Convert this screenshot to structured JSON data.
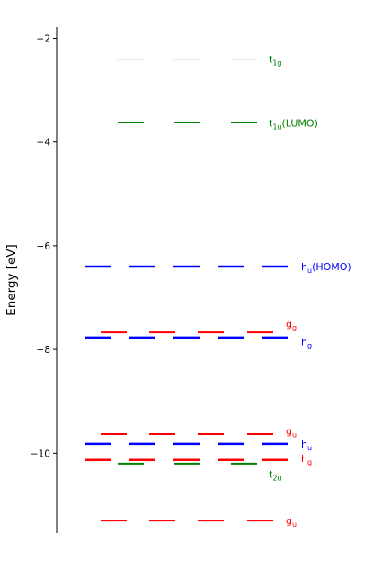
{
  "chart_data": {
    "type": "energy-level-diagram",
    "title": "",
    "xlabel": "",
    "ylabel": "Energy [eV]",
    "ylim": [
      -11.5,
      -1.8
    ],
    "yticks": [
      -2,
      -4,
      -6,
      -8,
      -10
    ],
    "ytick_labels": [
      "−2",
      "−4",
      "−6",
      "−8",
      "−10"
    ],
    "grid": false,
    "levels": [
      {
        "id": "t1g",
        "energy": -2.4,
        "degeneracy": 3,
        "color": "#008000",
        "label_main": "t",
        "label_sub": "1g",
        "label_suffix": "",
        "label_energy": -2.4
      },
      {
        "id": "t1u",
        "energy": -3.63,
        "degeneracy": 3,
        "color": "#008000",
        "label_main": "t",
        "label_sub": "1u",
        "label_suffix": "(LUMO)",
        "label_energy": -3.63
      },
      {
        "id": "hu-homo",
        "energy": -6.4,
        "degeneracy": 5,
        "color": "#0000ff",
        "label_main": "h",
        "label_sub": "u",
        "label_suffix": "(HOMO)",
        "label_energy": -6.4
      },
      {
        "id": "gg",
        "energy": -7.67,
        "degeneracy": 4,
        "color": "#ff0000",
        "label_main": "g",
        "label_sub": "g",
        "label_suffix": "",
        "label_energy": -7.5
      },
      {
        "id": "hg-upper",
        "energy": -7.77,
        "degeneracy": 5,
        "color": "#0000ff",
        "label_main": "h",
        "label_sub": "g",
        "label_suffix": "",
        "label_energy": -7.85
      },
      {
        "id": "gu-upper",
        "energy": -9.63,
        "degeneracy": 4,
        "color": "#ff0000",
        "label_main": "g",
        "label_sub": "u",
        "label_suffix": "",
        "label_energy": -9.57
      },
      {
        "id": "hu-lower",
        "energy": -9.82,
        "degeneracy": 5,
        "color": "#0000ff",
        "label_main": "h",
        "label_sub": "u",
        "label_suffix": "",
        "label_energy": -9.82
      },
      {
        "id": "hg-lower",
        "energy": -10.13,
        "degeneracy": 5,
        "color": "#ff0000",
        "label_main": "h",
        "label_sub": "g",
        "label_suffix": "",
        "label_energy": -10.1
      },
      {
        "id": "t2u",
        "energy": -10.2,
        "degeneracy": 3,
        "color": "#008000",
        "label_main": "t",
        "label_sub": "2u",
        "label_suffix": "",
        "label_energy": -10.4
      },
      {
        "id": "gu-lower",
        "energy": -11.3,
        "degeneracy": 4,
        "color": "#ff0000",
        "label_main": "g",
        "label_sub": "u",
        "label_suffix": "",
        "label_energy": -11.3
      }
    ]
  }
}
